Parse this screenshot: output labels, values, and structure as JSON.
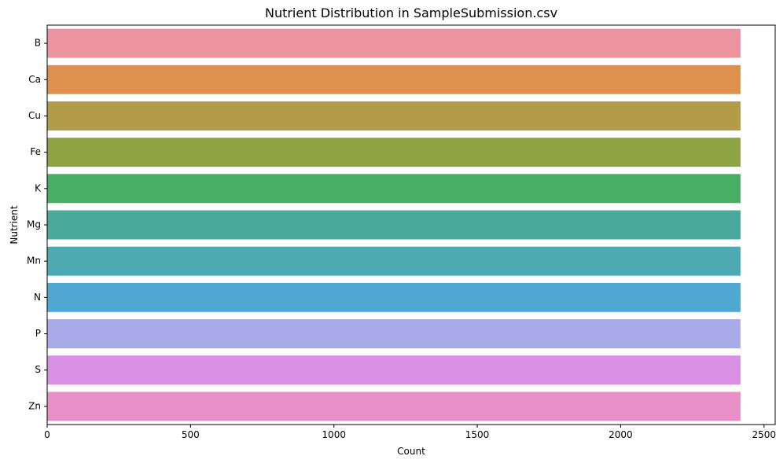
{
  "chart_data": {
    "type": "bar",
    "orientation": "horizontal",
    "title": "Nutrient Distribution in SampleSubmission.csv",
    "xlabel": "Count",
    "ylabel": "Nutrient",
    "categories": [
      "B",
      "Ca",
      "Cu",
      "Fe",
      "K",
      "Mg",
      "Mn",
      "N",
      "P",
      "S",
      "Zn"
    ],
    "values": [
      2418,
      2418,
      2418,
      2418,
      2418,
      2418,
      2418,
      2418,
      2418,
      2418,
      2418
    ],
    "xlim": [
      0,
      2539
    ],
    "xticks": [
      0,
      500,
      1000,
      1500,
      2000,
      2500
    ],
    "grid": false,
    "colors": [
      "#eb949f",
      "#de904d",
      "#b29c47",
      "#8ea443",
      "#47ad64",
      "#49a99b",
      "#4da9b2",
      "#4ea8d1",
      "#a8abe8",
      "#d890e4",
      "#e88fc8"
    ]
  }
}
